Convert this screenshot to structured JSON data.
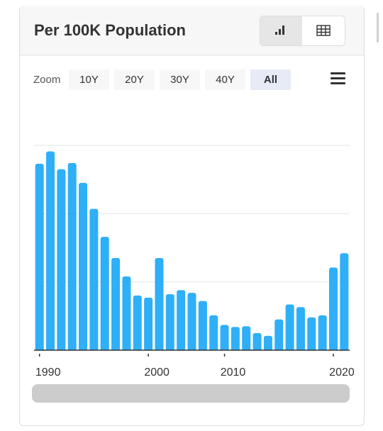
{
  "chart_data": {
    "type": "bar",
    "title": "Per 100K Population",
    "categories": [
      "1990",
      null,
      null,
      null,
      null,
      null,
      null,
      null,
      null,
      null,
      "2000",
      null,
      null,
      null,
      null,
      null,
      null,
      "2010",
      null,
      null,
      null,
      null,
      null,
      null,
      null,
      null,
      null,
      "2020",
      null
    ],
    "values": [
      2.73,
      2.91,
      2.65,
      2.74,
      2.45,
      2.07,
      1.66,
      1.35,
      1.08,
      0.8,
      0.77,
      1.35,
      0.82,
      0.88,
      0.84,
      0.72,
      0.51,
      0.37,
      0.34,
      0.35,
      0.25,
      0.21,
      0.45,
      0.67,
      0.63,
      0.48,
      0.51,
      1.21,
      1.42
    ],
    "color": "#2eaff7",
    "ylim": [
      0,
      3
    ],
    "yticks": [
      0,
      1,
      2,
      3
    ],
    "grid": true
  },
  "ui": {
    "zoom_label": "Zoom",
    "zoom_buttons": [
      "10Y",
      "20Y",
      "30Y",
      "40Y",
      "All"
    ],
    "zoom_selected": 4
  }
}
